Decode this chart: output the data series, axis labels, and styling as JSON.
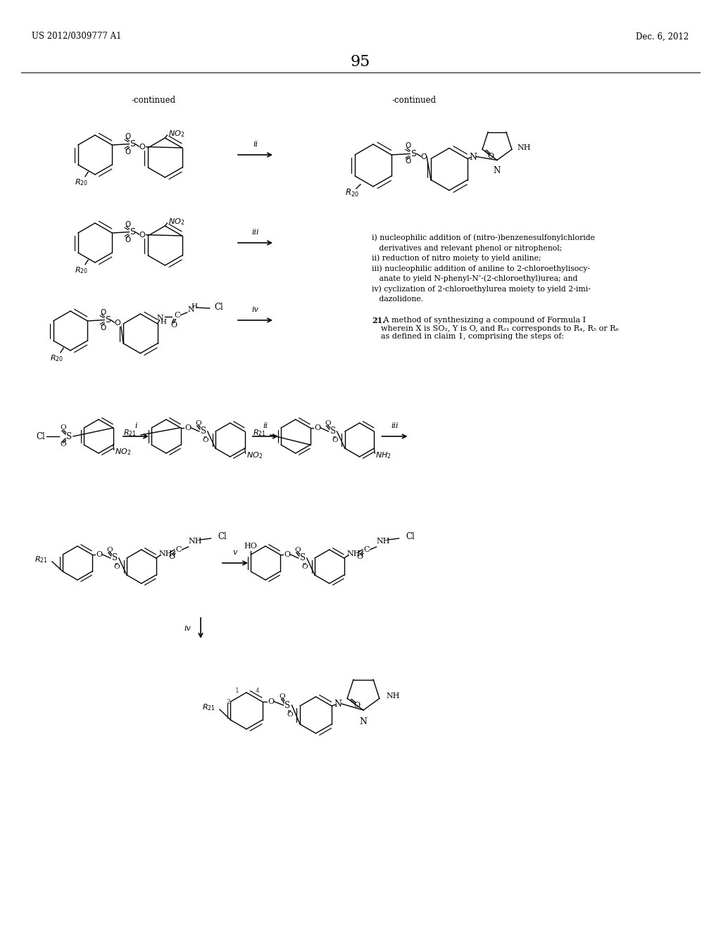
{
  "page_header_left": "US 2012/0309777 A1",
  "page_header_right": "Dec. 6, 2012",
  "page_number": "95",
  "background_color": "#ffffff",
  "text_color": "#000000",
  "notes": [
    "i) nucleophilic addition of (nitro-)benzenesulfonylchloride",
    "   derivatives and relevant phenol or nitrophenol;",
    "ii) reduction of nitro moiety to yield aniline;",
    "iii) nucleophilic addition of aniline to 2-chloroethylisocy-",
    "   anate to yield N-phenyl-N’-(2-chloroethyl)urea; and",
    "iv) cyclization of 2-chloroethylurea moiety to yield 2-imi-",
    "   dazolidone."
  ],
  "claim21_bold": "21.",
  "claim21_text": " A method of synthesizing a compound of Formula I\nwherein X is SO₂, Y is O, and R₂₁ corresponds to R₄, R₅ or R₆\nas defined in claim 1, comprising the steps of:"
}
